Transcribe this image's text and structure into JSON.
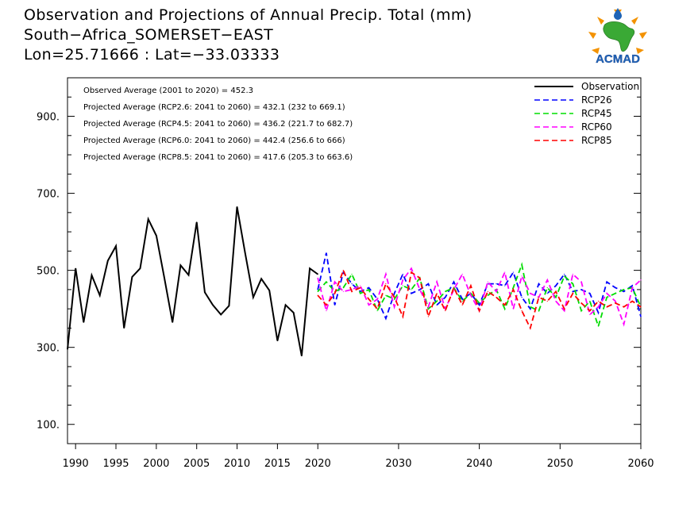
{
  "header": {
    "title": "Observation and Projections of Annual Precip. Total (mm)",
    "location": "South−Africa_SOMERSET−EAST",
    "coords": "Lon=25.71666 : Lat=−33.03333"
  },
  "logo": {
    "text": "ACMAD"
  },
  "colors": {
    "observation": "#000000",
    "RCP26": "#0000ff",
    "RCP45": "#00dd00",
    "RCP60": "#ff00ff",
    "RCP85": "#ff0000",
    "logo_orange": "#f39200",
    "logo_green": "#3aa935",
    "logo_blue": "#1e63b6"
  },
  "chart_data": {
    "type": "line",
    "xlim": [
      1989,
      2060
    ],
    "ylim": [
      50,
      1000
    ],
    "x_ticks": [
      1990,
      1995,
      2000,
      2005,
      2010,
      2015,
      2020,
      2030,
      2040,
      2050,
      2060
    ],
    "y_ticks": [
      100,
      300,
      500,
      700,
      900
    ],
    "y_tick_labels": [
      "100.",
      "300.",
      "500.",
      "700.",
      "900."
    ],
    "legend_position": "top-right",
    "stats": [
      "Observed Average (2001 to 2020) = 452.3",
      "Projected Average (RCP2.6: 2041 to 2060) = 432.1 (232 to 669.1)",
      "Projected Average (RCP4.5: 2041 to 2060) = 436.2 (221.7 to 682.7)",
      "Projected Average (RCP6.0: 2041 to 2060) = 442.4 (256.6 to 666)",
      "Projected Average (RCP8.5: 2041 to 2060) = 417.6 (205.3 to 663.6)"
    ],
    "series": [
      {
        "name": "Observation",
        "style": "solid",
        "x": [
          1989,
          1990,
          1991,
          1992,
          1993,
          1994,
          1995,
          1996,
          1997,
          1998,
          1999,
          2000,
          2001,
          2002,
          2003,
          2004,
          2005,
          2006,
          2007,
          2008,
          2009,
          2010,
          2011,
          2012,
          2013,
          2014,
          2015,
          2016,
          2017,
          2018,
          2019,
          2020
        ],
        "values": [
          295,
          505,
          365,
          487,
          435,
          525,
          563,
          350,
          483,
          505,
          633,
          590,
          480,
          365,
          513,
          488,
          625,
          443,
          410,
          385,
          408,
          665,
          545,
          430,
          478,
          448,
          317,
          410,
          390,
          278,
          505,
          490
        ]
      },
      {
        "name": "RCP26",
        "style": "dashed",
        "x_start": 2020,
        "values": [
          450,
          545,
          410,
          495,
          465,
          445,
          455,
          425,
          375,
          440,
          490,
          440,
          450,
          465,
          410,
          430,
          470,
          425,
          440,
          410,
          465,
          465,
          460,
          495,
          430,
          400,
          465,
          440,
          460,
          490,
          445,
          450,
          440,
          390,
          470,
          455,
          445,
          460,
          380
        ]
      },
      {
        "name": "RCP45",
        "style": "dashed",
        "x_start": 2020,
        "values": [
          445,
          470,
          445,
          455,
          490,
          440,
          450,
          395,
          435,
          425,
          460,
          450,
          480,
          400,
          420,
          445,
          455,
          420,
          440,
          415,
          435,
          450,
          400,
          455,
          515,
          405,
          395,
          455,
          430,
          485,
          465,
          395,
          420,
          355,
          430,
          440,
          450,
          455,
          405
        ]
      },
      {
        "name": "RCP60",
        "style": "dashed",
        "x_start": 2020,
        "values": [
          480,
          395,
          470,
          445,
          450,
          460,
          410,
          425,
          490,
          405,
          475,
          505,
          450,
          405,
          470,
          400,
          450,
          490,
          435,
          395,
          470,
          445,
          495,
          400,
          485,
          440,
          430,
          475,
          420,
          395,
          490,
          470,
          385,
          405,
          440,
          420,
          360,
          455,
          475
        ]
      },
      {
        "name": "RCP85",
        "style": "dashed",
        "x_start": 2020,
        "values": [
          435,
          410,
          440,
          500,
          445,
          455,
          425,
          400,
          465,
          430,
          380,
          495,
          480,
          380,
          440,
          395,
          455,
          410,
          460,
          395,
          445,
          430,
          410,
          450,
          395,
          350,
          430,
          420,
          445,
          400,
          440,
          415,
          395,
          420,
          405,
          415,
          405,
          420,
          405
        ]
      }
    ]
  }
}
